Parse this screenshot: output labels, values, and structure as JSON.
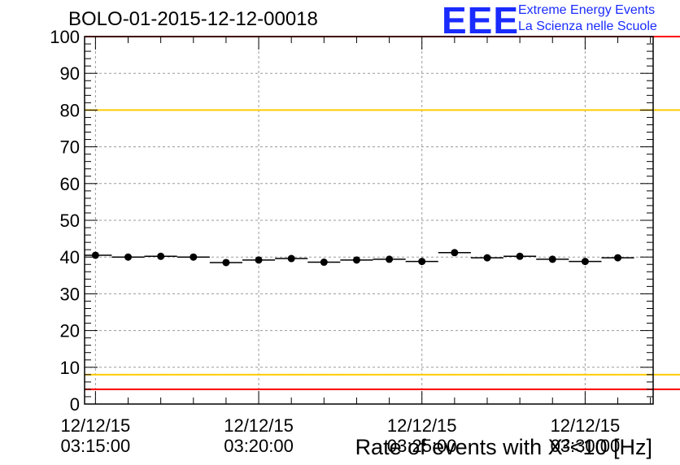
{
  "header": {
    "title": "BOLO-01-2015-12-12-00018"
  },
  "logo": {
    "mark": "EEE",
    "line1": "Extreme Energy Events",
    "line2": "La Scienza nelle Scuole"
  },
  "chart_data": {
    "type": "scatter",
    "xlabel": "Rate of events with X²<10 [Hz]",
    "ylabel": "",
    "ylim": [
      0,
      100
    ],
    "yticks": [
      0,
      10,
      20,
      30,
      40,
      50,
      60,
      70,
      80,
      90,
      100
    ],
    "x_range": [
      "12/12/15 03:14:40",
      "12/12/15 03:32:05"
    ],
    "x_ticks": [
      {
        "date": "12/12/15",
        "time": "03:15:00"
      },
      {
        "date": "12/12/15",
        "time": "03:20:00"
      },
      {
        "date": "12/12/15",
        "time": "03:25:00"
      },
      {
        "date": "12/12/15",
        "time": "03:30:00"
      }
    ],
    "grid": true,
    "reference_lines": [
      {
        "y": 100,
        "color": "#ff0000"
      },
      {
        "y": 80,
        "color": "#ffcc00"
      },
      {
        "y": 8,
        "color": "#ffcc00"
      },
      {
        "y": 4,
        "color": "#ff0000"
      }
    ],
    "series": [
      {
        "color": "#000000",
        "points": [
          {
            "x": "03:15:00",
            "y": 40.5
          },
          {
            "x": "03:16:00",
            "y": 40.0
          },
          {
            "x": "03:17:00",
            "y": 40.2
          },
          {
            "x": "03:18:00",
            "y": 40.0
          },
          {
            "x": "03:19:00",
            "y": 38.5
          },
          {
            "x": "03:20:00",
            "y": 39.2
          },
          {
            "x": "03:21:00",
            "y": 39.6
          },
          {
            "x": "03:22:00",
            "y": 38.6
          },
          {
            "x": "03:23:00",
            "y": 39.2
          },
          {
            "x": "03:24:00",
            "y": 39.4
          },
          {
            "x": "03:25:00",
            "y": 38.8
          },
          {
            "x": "03:26:00",
            "y": 41.2
          },
          {
            "x": "03:27:00",
            "y": 39.8
          },
          {
            "x": "03:28:00",
            "y": 40.2
          },
          {
            "x": "03:29:00",
            "y": 39.4
          },
          {
            "x": "03:30:00",
            "y": 38.8
          },
          {
            "x": "03:31:00",
            "y": 39.8
          }
        ],
        "bin_width_seconds": 60
      }
    ]
  }
}
